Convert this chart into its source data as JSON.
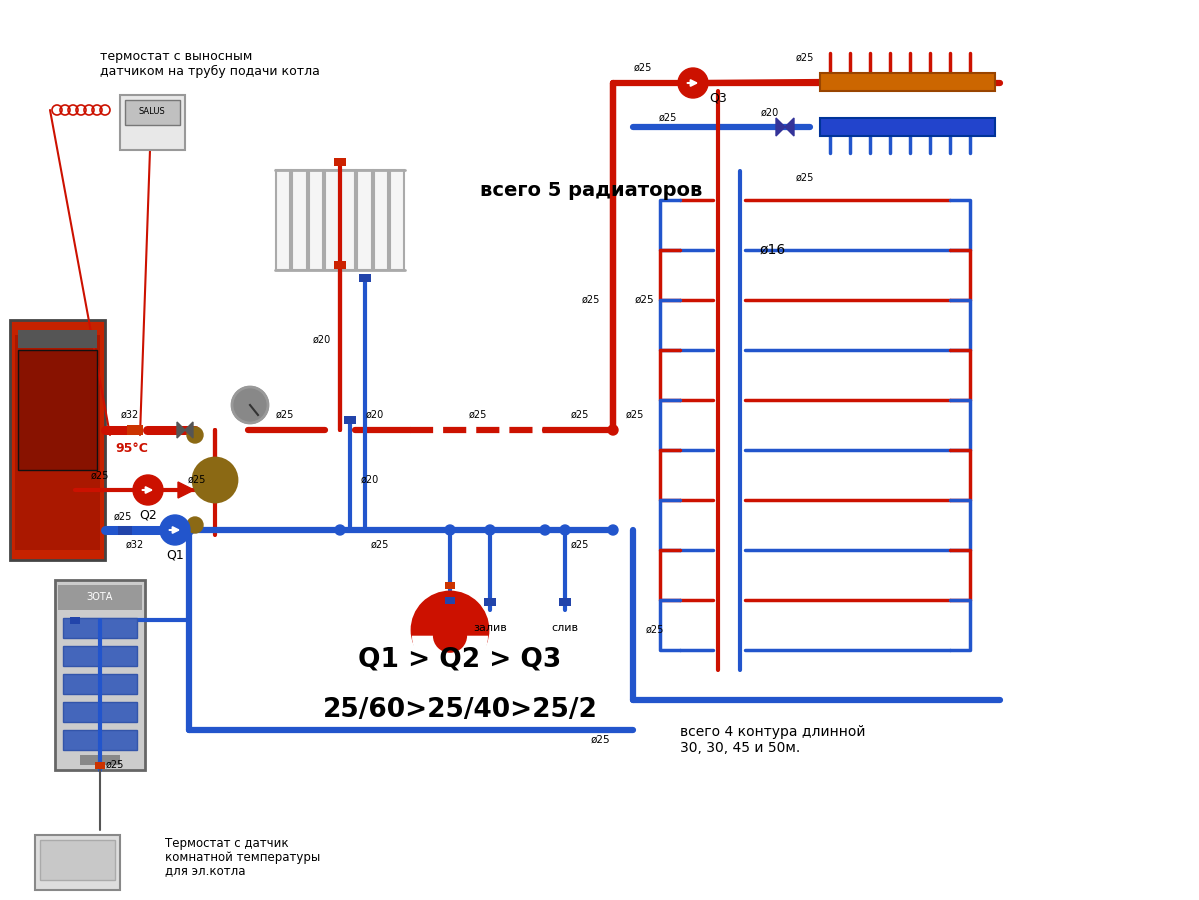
{
  "fig_w": 11.99,
  "fig_h": 9.0,
  "red": "#cc1100",
  "blue": "#2255cc",
  "brown": "#8B6914",
  "gray_boiler": "#c62200",
  "el_boiler_color": "#aaaaaa",
  "text_color": "#000000",
  "label_thermostat_top": "термостат с выносным\nдатчиком на трубу подачи котла",
  "label_radiators": "всего 5 радиаторов",
  "label_95": "95°C",
  "label_q1": "Q1",
  "label_q2": "Q2",
  "label_q3": "Q3",
  "label_phi16": "ø16",
  "label_zaliv": "залив",
  "label_sliv": "слив",
  "label_contours": "всего 4 контура длинной\n30, 30, 45 и 50м.",
  "label_formula1": "Q1 > Q2 > Q3",
  "label_formula2": "25/60>25/40>25/2",
  "label_thermostat_bot1": "Термостат с датчик",
  "label_thermostat_bot2": "комнатной температуры",
  "label_thermostat_bot3": "для эл.котла"
}
